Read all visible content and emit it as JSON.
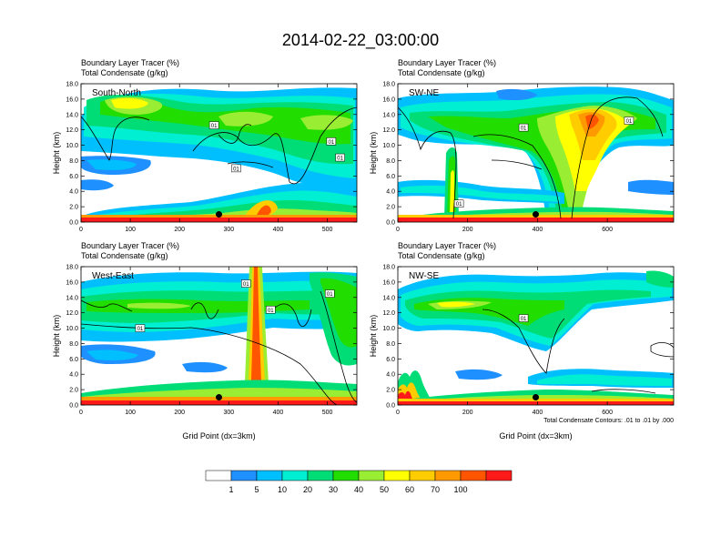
{
  "title": "2014-02-22_03:00:00",
  "field_label_1": "Boundary Layer Tracer   (%)",
  "field_label_2": "Total Condensate   (g/kg)",
  "footnote": "Total Condensate Contours: .01 to .01 by .000",
  "colorbar": {
    "colors": [
      "#ffffff",
      "#1e90ff",
      "#00bfff",
      "#00eed2",
      "#00dd77",
      "#22dd00",
      "#99ee33",
      "#ffff00",
      "#ffcc00",
      "#ff9900",
      "#ff5500",
      "#ff1a1a"
    ],
    "labels": [
      "1",
      "5",
      "10",
      "20",
      "30",
      "40",
      "50",
      "60",
      "70",
      "100"
    ]
  },
  "chart_data": [
    {
      "type": "heatmap",
      "panel_label": "South-North",
      "ylabel": "Height (km)",
      "xlabel": "",
      "ylim": [
        0,
        18
      ],
      "yticks": [
        "0.0",
        "2.0",
        "4.0",
        "6.0",
        "8.0",
        "10.0",
        "12.0",
        "14.0",
        "16.0",
        "18.0"
      ],
      "xlim": [
        0,
        560
      ],
      "xticks": [
        "0",
        "100",
        "200",
        "300",
        "400",
        "500"
      ],
      "marker": {
        "x": 280,
        "y": 1.0
      },
      "contour_labels": [
        {
          "text": "01",
          "x": 270,
          "y": 12.6
        },
        {
          "text": "01",
          "x": 508,
          "y": 10.5
        },
        {
          "text": "01",
          "x": 315,
          "y": 7.0
        },
        {
          "text": "01",
          "x": 526,
          "y": 8.4
        }
      ]
    },
    {
      "type": "heatmap",
      "panel_label": "SW-NE",
      "ylabel": "Height (km)",
      "xlabel": "",
      "ylim": [
        0,
        18
      ],
      "yticks": [
        "0.0",
        "2.0",
        "4.0",
        "6.0",
        "8.0",
        "10.0",
        "12.0",
        "14.0",
        "16.0",
        "18.0"
      ],
      "xlim": [
        0,
        790
      ],
      "xticks": [
        "0",
        "200",
        "400",
        "600"
      ],
      "marker": {
        "x": 395,
        "y": 1.0
      },
      "contour_labels": [
        {
          "text": "01",
          "x": 360,
          "y": 12.3
        },
        {
          "text": "01",
          "x": 662,
          "y": 13.2
        },
        {
          "text": "01",
          "x": 175,
          "y": 2.4
        }
      ]
    },
    {
      "type": "heatmap",
      "panel_label": "West-East",
      "ylabel": "Height (km)",
      "xlabel": "Grid Point (dx=3km)",
      "ylim": [
        0,
        18
      ],
      "yticks": [
        "0.0",
        "2.0",
        "4.0",
        "6.0",
        "8.0",
        "10.0",
        "12.0",
        "14.0",
        "16.0",
        "18.0"
      ],
      "xlim": [
        0,
        560
      ],
      "xticks": [
        "0",
        "100",
        "200",
        "300",
        "400",
        "500"
      ],
      "marker": {
        "x": 280,
        "y": 1.0
      },
      "contour_labels": [
        {
          "text": "01",
          "x": 335,
          "y": 15.8
        },
        {
          "text": "01",
          "x": 505,
          "y": 14.5
        },
        {
          "text": "01",
          "x": 385,
          "y": 12.4
        },
        {
          "text": "01",
          "x": 120,
          "y": 10.0
        }
      ]
    },
    {
      "type": "heatmap",
      "panel_label": "NW-SE",
      "ylabel": "Height (km)",
      "xlabel": "Grid Point (dx=3km)",
      "ylim": [
        0,
        18
      ],
      "yticks": [
        "0.0",
        "2.0",
        "4.0",
        "6.0",
        "8.0",
        "10.0",
        "12.0",
        "14.0",
        "16.0",
        "18.0"
      ],
      "xlim": [
        0,
        790
      ],
      "xticks": [
        "0",
        "200",
        "400",
        "600"
      ],
      "marker": {
        "x": 395,
        "y": 1.0
      },
      "contour_labels": [
        {
          "text": "01",
          "x": 360,
          "y": 11.3
        }
      ]
    }
  ]
}
